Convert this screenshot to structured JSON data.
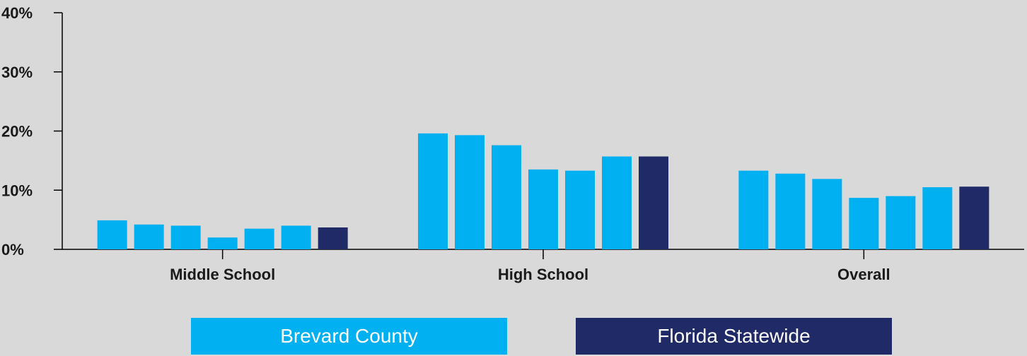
{
  "colors": {
    "brevard": "#00b0f0",
    "florida": "#1f2a66",
    "axis": "#000000",
    "background": "#d9d9d9"
  },
  "legend": {
    "brevard_label": "Brevard County",
    "florida_label": "Florida Statewide"
  },
  "chart_data": {
    "type": "bar",
    "categories": [
      "Middle School",
      "High School",
      "Overall"
    ],
    "series": [
      {
        "name": "",
        "group": "brevard",
        "values": [
          4.9,
          19.6,
          13.3
        ]
      },
      {
        "name": "",
        "group": "brevard",
        "values": [
          4.2,
          19.3,
          12.8
        ]
      },
      {
        "name": "",
        "group": "brevard",
        "values": [
          4.0,
          17.6,
          11.9
        ]
      },
      {
        "name": "",
        "group": "brevard",
        "values": [
          2.0,
          13.5,
          8.7
        ]
      },
      {
        "name": "",
        "group": "brevard",
        "values": [
          3.5,
          13.3,
          9.0
        ]
      },
      {
        "name": "",
        "group": "brevard",
        "values": [
          4.0,
          15.7,
          10.5
        ]
      },
      {
        "name": "Florida Statewide",
        "group": "florida",
        "values": [
          3.7,
          15.7,
          10.6
        ]
      }
    ],
    "ylim": [
      0,
      40
    ],
    "yticks": [
      "0%",
      "10%",
      "20%",
      "30%",
      "40%"
    ],
    "ytick_values": [
      0,
      10,
      20,
      30,
      40
    ],
    "xlabel": "",
    "ylabel": "",
    "grid": false,
    "legend_position": "bottom"
  }
}
